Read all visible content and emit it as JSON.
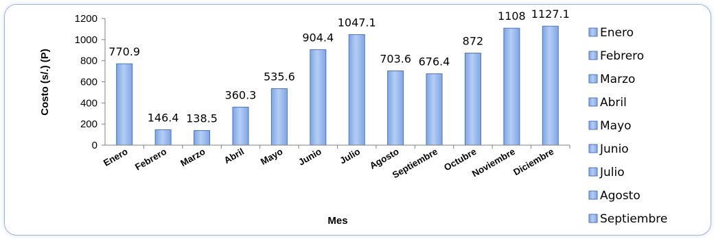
{
  "chart_data": {
    "type": "bar",
    "title": "",
    "xlabel": "Mes",
    "ylabel": "Costo (s/.) (P)",
    "ylim": [
      0,
      1200
    ],
    "yticks": [
      0,
      200,
      400,
      600,
      800,
      1000,
      1200
    ],
    "categories": [
      "Enero",
      "Febrero",
      "Marzo",
      "Abril",
      "Mayo",
      "Junio",
      "Julio",
      "Agosto",
      "Septiembre",
      "Octubre",
      "Noviembre",
      "Diciembre"
    ],
    "values": [
      770.9,
      146.4,
      138.5,
      360.3,
      535.6,
      904.4,
      1047.1,
      703.6,
      676.4,
      872,
      1108,
      1127.1
    ],
    "data_labels": [
      "770.9",
      "146.4",
      "138.5",
      "360.3",
      "535.6",
      "904.4",
      "1047.1",
      "703.6",
      "676.4",
      "872",
      "1108",
      "1127.1"
    ],
    "legend": [
      "Enero",
      "Febrero",
      "Marzo",
      "Abril",
      "Mayo",
      "Junio",
      "Julio",
      "Agosto",
      "Septiembre"
    ],
    "legend_position": "right",
    "grid": false,
    "colors": {
      "bar_fill_top": "#b5cdf3",
      "bar_fill_bottom": "#7ea6e6",
      "bar_stroke": "#4a73b8",
      "axis": "#7f7f7f"
    }
  }
}
